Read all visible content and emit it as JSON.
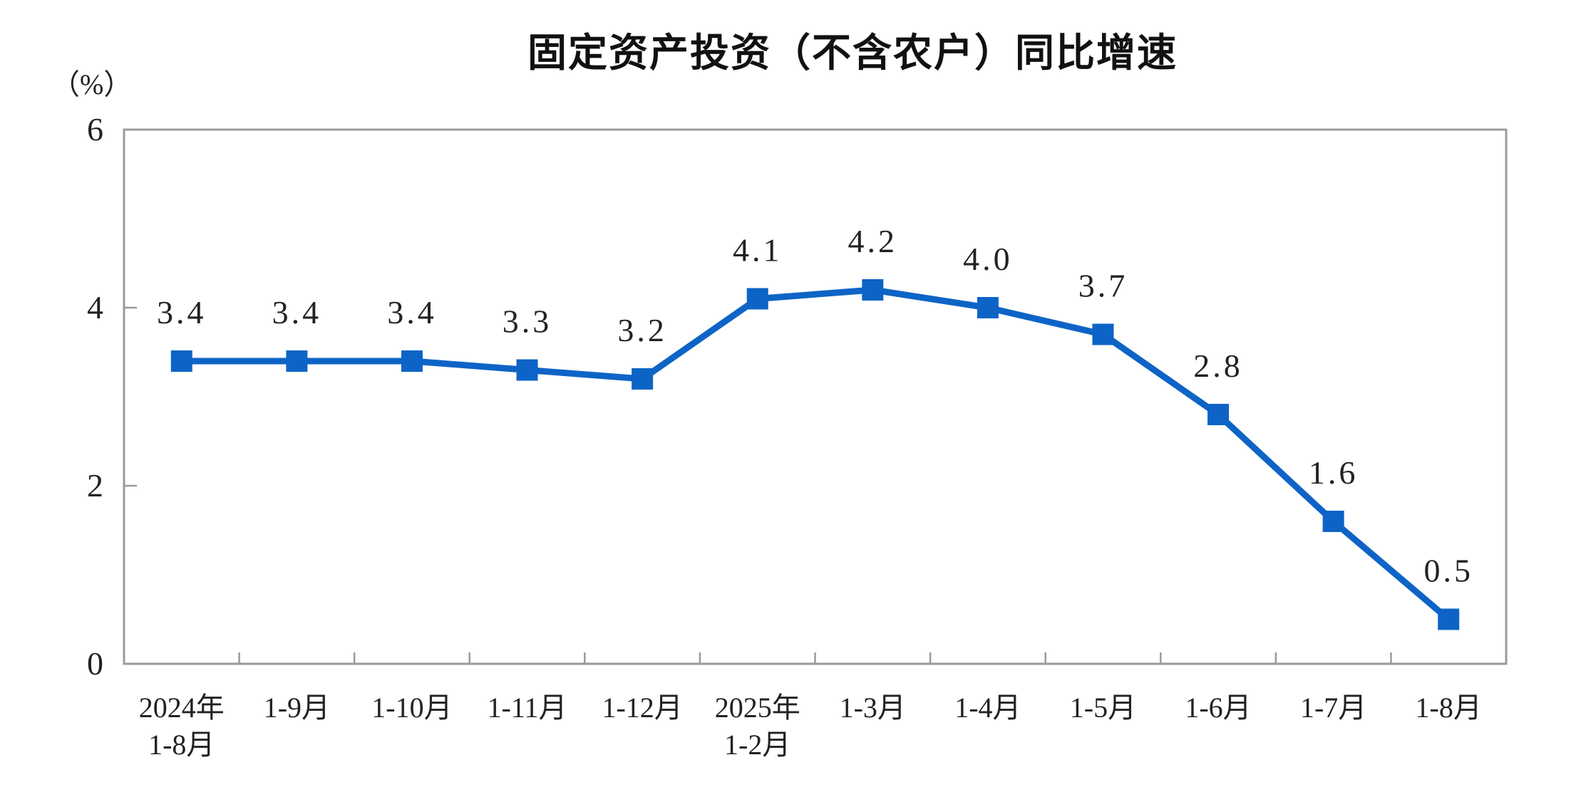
{
  "title": "固定资产投资（不含农户）同比增速",
  "unit_label": "（%）",
  "colors": {
    "line": "#0D64C6",
    "marker": "#0D64C6",
    "axis": "#9A9A9A",
    "label_text": "#222222",
    "title_text": "#111111"
  },
  "chart_data": {
    "type": "line",
    "title": "固定资产投资（不含农户）同比增速",
    "ylabel": "（%）",
    "categories": [
      "2024年\n1-8月",
      "1-9月",
      "1-10月",
      "1-11月",
      "1-12月",
      "2025年\n1-2月",
      "1-3月",
      "1-4月",
      "1-5月",
      "1-6月",
      "1-7月",
      "1-8月"
    ],
    "values": [
      3.4,
      3.4,
      3.4,
      3.3,
      3.2,
      4.1,
      4.2,
      4.0,
      3.7,
      2.8,
      1.6,
      0.5
    ],
    "value_labels": [
      "3.4",
      "3.4",
      "3.4",
      "3.3",
      "3.2",
      "4.1",
      "4.2",
      "4.0",
      "3.7",
      "2.8",
      "1.6",
      "0.5"
    ],
    "ylim": [
      0,
      6
    ],
    "yticks": [
      0,
      2,
      4,
      6
    ],
    "grid": false,
    "legend_position": "none",
    "marker": "square",
    "data_labels_shown": true
  }
}
